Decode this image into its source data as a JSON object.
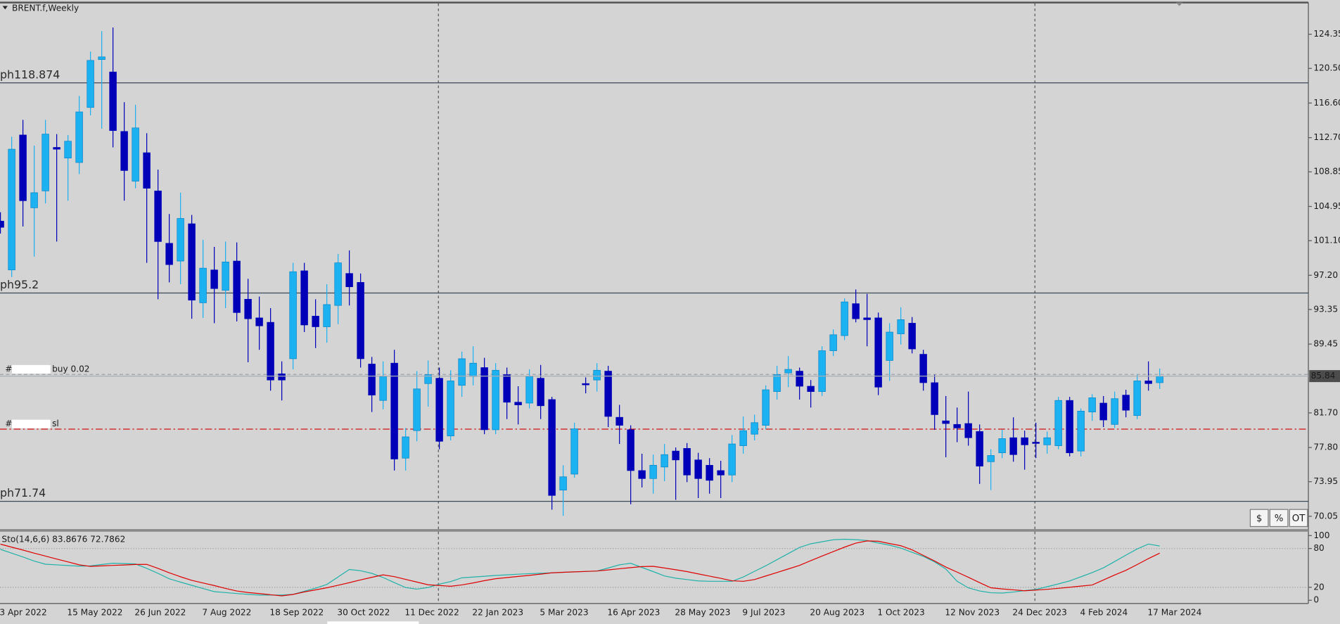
{
  "chart_data": [
    {
      "type": "candlestick",
      "title": "BRENT.f,Weekly",
      "categories": [
        "3 Apr 2022",
        null,
        null,
        null,
        null,
        null,
        "15 May 2022",
        null,
        null,
        null,
        null,
        null,
        "26 Jun 2022",
        null,
        null,
        null,
        null,
        null,
        "7 Aug 2022",
        null,
        null,
        null,
        null,
        null,
        "18 Sep 2022",
        null,
        null,
        null,
        null,
        null,
        "30 Oct 2022",
        null,
        null,
        null,
        null,
        null,
        "11 Dec 2022",
        null,
        null,
        null,
        null,
        null,
        "22 Jan 2023",
        null,
        null,
        null,
        null,
        null,
        "5 Mar 2023",
        null,
        null,
        null,
        null,
        null,
        "16 Apr 2023",
        null,
        null,
        null,
        null,
        null,
        "28 May 2023",
        null,
        null,
        null,
        null,
        null,
        "9 Jul 2023",
        null,
        null,
        null,
        null,
        null,
        "20 Aug 2023",
        null,
        null,
        null,
        null,
        null,
        "1 Oct 2023",
        null,
        null,
        null,
        null,
        null,
        "12 Nov 2023",
        null,
        null,
        null,
        null,
        null,
        "24 Dec 2023",
        null,
        null,
        null,
        null,
        null,
        "4 Feb 2024",
        null,
        null,
        null,
        null,
        null,
        "17 Mar 2024",
        null
      ],
      "open": [
        103.3,
        97.8,
        113,
        104.8,
        106.7,
        111.6,
        110.4,
        109.9,
        116.1,
        121.5,
        120.1,
        113.4,
        107.8,
        111,
        106.7,
        100.8,
        98.8,
        103,
        94.1,
        97.8,
        95.5,
        98.8,
        94.5,
        92.4,
        91.9,
        86.1,
        87.8,
        97.7,
        92.6,
        91.4,
        93.8,
        97.4,
        96.4,
        87.2,
        83.1,
        87.3,
        76.6,
        79.7,
        85,
        85.6,
        79.1,
        84.8,
        85.8,
        86.8,
        79.8,
        86,
        82.9,
        82.8,
        85.6,
        83.2,
        73,
        74.8,
        85,
        85.4,
        86.4,
        81.2,
        79.8,
        75.2,
        74.3,
        75.6,
        77.4,
        77.7,
        76.4,
        75.8,
        75.2,
        74.7,
        78,
        79.3,
        80.3,
        84.1,
        86.2,
        86.4,
        84.7,
        84.1,
        88.7,
        90.4,
        94,
        92.4,
        92.4,
        87.6,
        90.6,
        91.8,
        88.3,
        85.1,
        80.8,
        80.4,
        80.5,
        79.6,
        76.2,
        77.2,
        78.9,
        78.9,
        78.4,
        78.1,
        78,
        83.1,
        77.4,
        81.8,
        82.8,
        80.4,
        83.7,
        81.4,
        85.3,
        85.1
      ],
      "high": [
        104.3,
        112.8,
        114.7,
        111.8,
        114.7,
        113.1,
        113,
        117.4,
        122.4,
        124.7,
        125.1,
        116.7,
        116.4,
        113.2,
        109.1,
        104.1,
        106.5,
        104,
        101.2,
        100.4,
        101,
        100.9,
        96.8,
        94.8,
        93.5,
        87.5,
        98.6,
        98.6,
        94.5,
        96.2,
        99.6,
        100,
        97.4,
        88,
        87.5,
        88.8,
        80,
        86.4,
        87.6,
        86.8,
        86.5,
        88.6,
        89.2,
        87.9,
        87.3,
        86.8,
        84.7,
        86.6,
        87.1,
        83.5,
        75.8,
        80.6,
        85.7,
        87.3,
        87,
        82.6,
        80.3,
        77.1,
        77,
        78.2,
        77.8,
        78.3,
        77.2,
        76.6,
        76.3,
        79.2,
        81.3,
        81.5,
        84.8,
        87,
        88.1,
        86.8,
        85.4,
        89.2,
        91.1,
        94.6,
        95.6,
        95.1,
        93,
        91.8,
        93.6,
        92.5,
        88.8,
        86,
        83.6,
        82.3,
        84.1,
        80.4,
        77.6,
        79.8,
        81.2,
        79.7,
        80.6,
        79.6,
        83.5,
        83.5,
        82.2,
        83.8,
        83.6,
        84.1,
        84.3,
        86,
        87.5,
        86.7
      ],
      "low": [
        101.9,
        97,
        102.7,
        99.3,
        105.3,
        101,
        105.6,
        108.6,
        115.2,
        113.7,
        111.6,
        105.6,
        107,
        98.6,
        94.5,
        96.4,
        96.2,
        92.3,
        92.4,
        91.8,
        93.5,
        92,
        87.4,
        88.8,
        84.2,
        83.1,
        86.6,
        90.8,
        89,
        89.6,
        91.7,
        93.8,
        86.8,
        81.8,
        82.1,
        75.2,
        75.2,
        78.5,
        82.4,
        77.6,
        78.6,
        83.5,
        84.8,
        79.3,
        79.3,
        81,
        80.4,
        82.2,
        81,
        70.8,
        70.1,
        74.4,
        83.9,
        84.1,
        80.1,
        78.2,
        71.4,
        73.3,
        72.6,
        74,
        71.9,
        73.9,
        72.1,
        72.6,
        72.1,
        73.9,
        77.1,
        78.6,
        79.9,
        83.2,
        84.6,
        83.2,
        82.3,
        83.6,
        88.1,
        89.9,
        91.9,
        89.2,
        83.7,
        85.3,
        89.4,
        88.4,
        84.2,
        79.8,
        76.7,
        78.4,
        78,
        73.7,
        73,
        76.6,
        76.2,
        75.3,
        76.6,
        77.1,
        77.6,
        76.8,
        76.8,
        80.8,
        80.1,
        80,
        81.2,
        81,
        84.2,
        84.4
      ],
      "close": [
        102.6,
        111.4,
        105.6,
        106.5,
        113.1,
        111.4,
        112.3,
        115.6,
        121.4,
        121.8,
        113.5,
        109,
        113.8,
        107,
        101,
        98.4,
        103.6,
        94.4,
        98,
        95.7,
        98.7,
        93,
        92.3,
        91.5,
        85.4,
        85.4,
        97.6,
        91.6,
        91.4,
        93.9,
        98.6,
        95.9,
        87.8,
        83.7,
        85.8,
        76.5,
        79,
        84.4,
        86,
        78.5,
        85.3,
        87.8,
        87.3,
        79.8,
        86.5,
        82.9,
        82.6,
        85.8,
        82.5,
        72.4,
        74.5,
        79.9,
        84.9,
        86.5,
        81.3,
        80.3,
        75.2,
        74.3,
        75.8,
        77,
        76.4,
        74.7,
        74.3,
        74.1,
        74.7,
        78.2,
        79.7,
        80.6,
        84.3,
        86,
        86.6,
        84.7,
        84.1,
        88.7,
        90.5,
        94.2,
        92.3,
        92.2,
        84.6,
        90.8,
        92.2,
        88.9,
        85.1,
        81.5,
        80.5,
        80,
        78.9,
        75.7,
        76.9,
        78.8,
        77,
        78.1,
        78.3,
        78.9,
        83.1,
        77.2,
        81.9,
        83.4,
        80.9,
        83.3,
        82,
        85.3,
        85,
        85.84
      ],
      "up_color": "#1cb2f2",
      "down_color": "#0000b8",
      "ylim": [
        68.51,
        127.82
      ],
      "yticks": [
        124.35,
        {
          "value": 120.5,
          "label": "120.50"
        },
        {
          "value": 116.6,
          "label": "116.60"
        },
        {
          "value": 112.7,
          "label": "112.70"
        },
        108.85,
        104.95,
        {
          "value": 101.1,
          "label": "101.10"
        },
        {
          "value": 97.2,
          "label": "97.20"
        },
        93.35,
        89.45,
        {
          "value": 81.7,
          "label": "81.70"
        },
        {
          "value": 77.8,
          "label": "77.80"
        },
        73.95,
        70.05
      ],
      "levels": [
        {
          "label": "ph118.874",
          "value": 118.874
        },
        {
          "label": "ph95.2",
          "value": 95.2
        },
        {
          "label": "ph71.74",
          "value": 71.74
        }
      ],
      "orders": [
        {
          "tag": "#",
          "label": "buy 0.02",
          "value": 86.03,
          "color": "#9aa0aa"
        },
        {
          "tag": "#",
          "label": "sl",
          "value": 79.87,
          "color": "#d01010"
        }
      ],
      "buttons": [
        "$",
        "%",
        "OT"
      ]
    },
    {
      "type": "line",
      "title": "Sto(14,6,6)",
      "series": [
        {
          "color": "#20b2aa",
          "values": [
            78.7,
            72.8,
            66.9,
            60.5,
            55.7,
            54.7,
            53.7,
            52.7,
            53.1,
            55.3,
            57.2,
            56.7,
            56.1,
            49.3,
            41.6,
            33.2,
            28,
            23.1,
            18.1,
            13.3,
            11.9,
            10.4,
            9.1,
            8,
            8,
            8,
            9.1,
            13.9,
            18.7,
            24.4,
            36,
            47.6,
            45.6,
            41.6,
            35.2,
            27.3,
            19.6,
            17.2,
            19.7,
            24.9,
            28.9,
            34.7,
            35.9,
            37.1,
            38.3,
            39.3,
            40.3,
            41.1,
            41.7,
            42.4,
            43.2,
            43.9,
            44.5,
            45.2,
            49.9,
            54.8,
            57.2,
            50.7,
            44.3,
            37.6,
            34.1,
            32,
            29.9,
            29.3,
            29.3,
            29.3,
            36,
            44.7,
            53.3,
            62.7,
            72.1,
            81.6,
            87.3,
            90.4,
            93.5,
            94.3,
            93.7,
            92.3,
            88.5,
            85.1,
            80.7,
            74.1,
            67.7,
            59.3,
            48.3,
            29.3,
            19.2,
            14.3,
            11.6,
            11.1,
            12.7,
            14.9,
            16.7,
            20.9,
            25.3,
            29.9,
            36.3,
            42.8,
            50.1,
            59.9,
            69.7,
            79.3,
            86.9,
            83.8676
          ]
        },
        {
          "color": "#e00000",
          "values": [
            86.7,
            82.1,
            77.6,
            72.8,
            68.3,
            63.7,
            59.3,
            54.8,
            52.3,
            53.1,
            53.9,
            54.5,
            55.3,
            55.5,
            49.3,
            42.5,
            36.3,
            30.8,
            26.7,
            22.7,
            18.3,
            14.3,
            12,
            10.3,
            8.5,
            6.8,
            9,
            12.9,
            16,
            19.3,
            23.2,
            27.2,
            31.5,
            35.5,
            39.3,
            36.5,
            32.3,
            28.1,
            23.9,
            22.8,
            21.6,
            23.7,
            26.8,
            30.3,
            33.3,
            35.1,
            36.8,
            38.5,
            40.4,
            42.4,
            43.2,
            43.9,
            44.5,
            45.2,
            46.9,
            48.7,
            50.4,
            52.1,
            52.5,
            49.9,
            47.2,
            44.3,
            40.8,
            37.3,
            33.9,
            30.1,
            29.3,
            32,
            37.5,
            42.9,
            48.4,
            53.9,
            61.3,
            68.3,
            75.2,
            82.1,
            88.3,
            91.7,
            91.2,
            87.7,
            84.3,
            78,
            69.3,
            60.7,
            51.3,
            43.5,
            35.5,
            27.2,
            19.3,
            17.5,
            16.1,
            14.7,
            15.7,
            16.9,
            18.4,
            20.1,
            21.9,
            23.6,
            31.3,
            39.1,
            46.3,
            55.2,
            64.4,
            72.7862
          ]
        }
      ],
      "ylim": [
        -5,
        106
      ],
      "yticks": [
        0,
        20,
        80,
        100
      ],
      "levels": [
        20,
        80
      ]
    }
  ]
}
